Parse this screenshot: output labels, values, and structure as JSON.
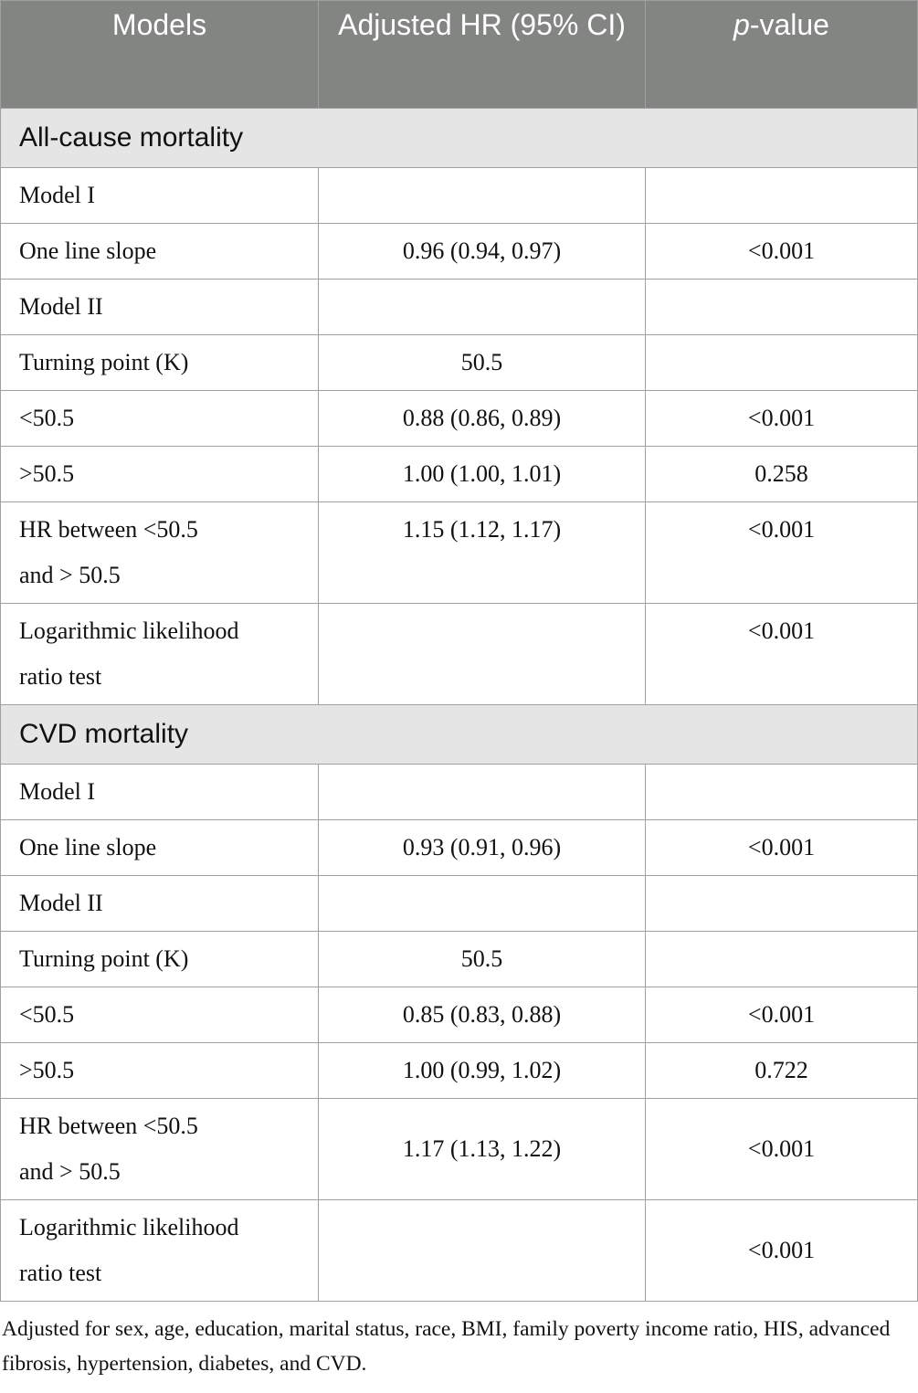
{
  "table": {
    "header": [
      "Models",
      "Adjusted HR (95% CI)",
      {
        "italic": "p",
        "rest": "-value"
      }
    ],
    "sections": [
      {
        "title": "All-cause mortality",
        "rows": [
          [
            "Model I",
            null,
            null
          ],
          [
            "One line slope",
            "0.96 (0.94, 0.97)",
            "<0.001"
          ],
          [
            "Model II",
            null,
            null
          ],
          [
            "Turning point (K)",
            "50.5",
            null
          ],
          [
            "<50.5",
            "0.88 (0.86, 0.89)",
            "<0.001"
          ],
          [
            ">50.5",
            "1.00 (1.00, 1.01)",
            "0.258"
          ],
          [
            "HR between <50.5\nand > 50.5",
            "1.15 (1.12, 1.17)",
            "<0.001"
          ],
          [
            "Logarithmic likelihood\nratio test",
            null,
            "<0.001"
          ]
        ]
      },
      {
        "title": "CVD mortality",
        "rows": [
          [
            "Model I",
            null,
            null
          ],
          [
            "One line slope",
            "0.93 (0.91, 0.96)",
            "<0.001"
          ],
          [
            "Model II",
            null,
            null
          ],
          [
            "Turning point (K)",
            "50.5",
            null
          ],
          [
            "<50.5",
            "0.85 (0.83, 0.88)",
            "<0.001"
          ],
          [
            ">50.5",
            "1.00 (0.99, 1.02)",
            "0.722"
          ],
          [
            "HR between <50.5\nand > 50.5",
            "1.17 (1.13, 1.22)",
            "<0.001"
          ],
          [
            "Logarithmic likelihood\nratio test",
            null,
            "<0.001"
          ]
        ]
      }
    ],
    "footnote": "Adjusted for sex, age, education, marital status, race, BMI, family poverty income ratio, HIS, advanced fibrosis, hypertension, diabetes, and CVD."
  }
}
